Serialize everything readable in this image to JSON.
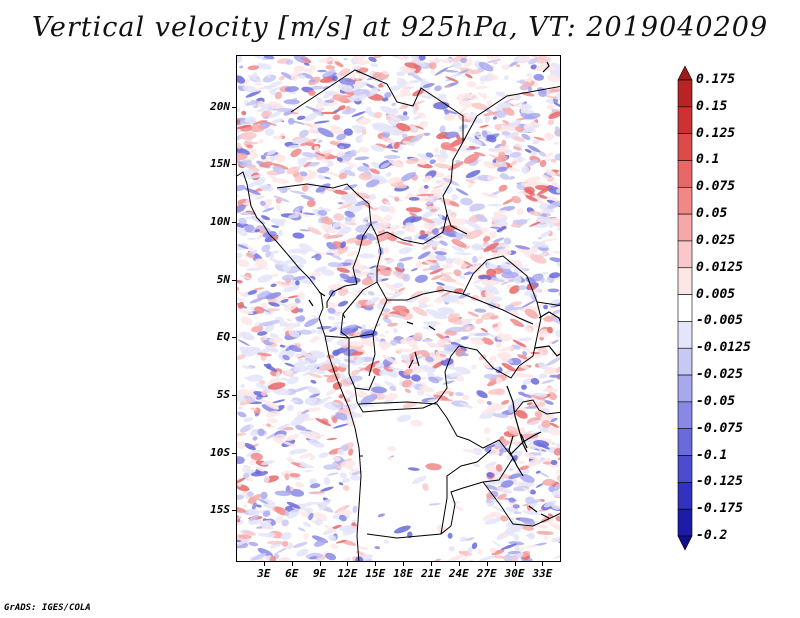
{
  "title": "Vertical velocity [m/s] at 925hPa, VT: 2019040209",
  "footer": "GrADS: IGES/COLA",
  "map": {
    "variable": "Vertical velocity",
    "units": "m/s",
    "level": "925hPa",
    "valid_time": "2019040209",
    "lat_range": [
      -19.5,
      24.5
    ],
    "lon_range": [
      0,
      35
    ],
    "lat_labels": [
      {
        "value": 20,
        "text": "20N"
      },
      {
        "value": 15,
        "text": "15N"
      },
      {
        "value": 10,
        "text": "10N"
      },
      {
        "value": 5,
        "text": "5N"
      },
      {
        "value": 0,
        "text": "EQ"
      },
      {
        "value": -5,
        "text": "5S"
      },
      {
        "value": -10,
        "text": "10S"
      },
      {
        "value": -15,
        "text": "15S"
      }
    ],
    "lon_labels": [
      {
        "value": 3,
        "text": "3E"
      },
      {
        "value": 6,
        "text": "6E"
      },
      {
        "value": 9,
        "text": "9E"
      },
      {
        "value": 12,
        "text": "12E"
      },
      {
        "value": 15,
        "text": "15E"
      },
      {
        "value": 18,
        "text": "18E"
      },
      {
        "value": 21,
        "text": "21E"
      },
      {
        "value": 24,
        "text": "24E"
      },
      {
        "value": 27,
        "text": "27E"
      },
      {
        "value": 30,
        "text": "30E"
      },
      {
        "value": 33,
        "text": "33E"
      }
    ]
  },
  "colorbar": {
    "labels": [
      "0.175",
      "0.15",
      "0.125",
      "0.1",
      "0.075",
      "0.05",
      "0.025",
      "0.0125",
      "0.005",
      "-0.005",
      "-0.0125",
      "-0.025",
      "-0.05",
      "-0.075",
      "-0.1",
      "-0.125",
      "-0.175",
      "-0.2"
    ],
    "colors": [
      "#a01c1c",
      "#b82424",
      "#cc3232",
      "#dc4a4a",
      "#e86868",
      "#f08888",
      "#f6a8a8",
      "#fac8c8",
      "#fde6e6",
      "#ffffff",
      "#e4e4fa",
      "#c8c8f4",
      "#a8a8ee",
      "#8888e6",
      "#6a6ada",
      "#4c4cce",
      "#3232c0",
      "#1c1ca8",
      "#10108a"
    ]
  }
}
